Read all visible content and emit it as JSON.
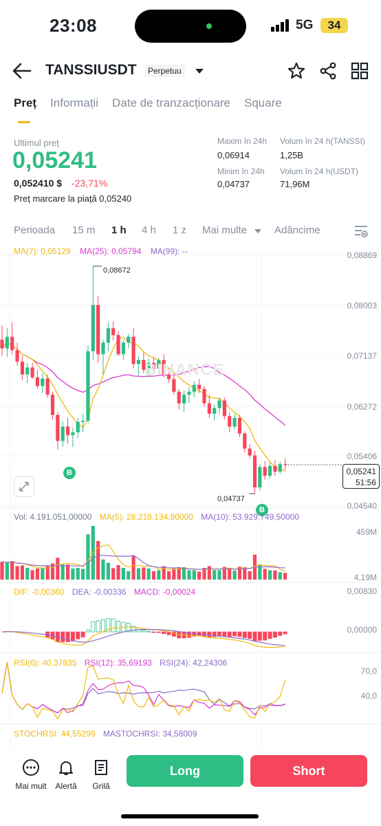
{
  "status_bar": {
    "time": "23:08",
    "network": "5G",
    "battery": "34"
  },
  "header": {
    "symbol": "TANSSIUSDT",
    "contract_type": "Perpetuu"
  },
  "tabs": [
    {
      "label": "Preț",
      "active": true
    },
    {
      "label": "Informații",
      "active": false
    },
    {
      "label": "Date de tranzacționare",
      "active": false
    },
    {
      "label": "Square",
      "active": false
    }
  ],
  "price": {
    "last_label": "Ultimul preț",
    "last": "0,05241",
    "fiat": "0,052410 $",
    "change": "-23,71%",
    "mark_label": "Preț marcare la piață",
    "mark": "0,05240"
  },
  "stats": {
    "high_label": "Maxim în 24h",
    "high": "0,06914",
    "low_label": "Minim în 24h",
    "low": "0,04737",
    "vol_base_label": "Volum în 24 h(TANSSI)",
    "vol_base": "1,25B",
    "vol_quote_label": "Volum în 24 h(USDT)",
    "vol_quote": "71,96M"
  },
  "intervals": {
    "period": "Perioada",
    "options": [
      "15 m",
      "1 h",
      "4 h",
      "1 z"
    ],
    "selected": "1 h",
    "more": "Mai multe",
    "depth": "Adâncime"
  },
  "colors": {
    "up": "#2ebd85",
    "down": "#f6465d",
    "accent": "#f0b90b",
    "ma7": "#f0b90b",
    "ma25": "#d63ad1",
    "ma99": "#8b6cc8"
  },
  "chart_data": [
    {
      "type": "candlestick",
      "watermark": "BINANCE",
      "legend": {
        "ma7": "MA(7): 0,05129",
        "ma25": "MA(25): 0,05794",
        "ma99": "MA(99): --"
      },
      "y_axis_labels": [
        "0,08869",
        "0,08003",
        "0,07137",
        "0,06272",
        "0,05406",
        "0,04540"
      ],
      "ylim": [
        0.0454,
        0.08869
      ],
      "high_marker": "0,08672",
      "low_marker": "0,04737",
      "current_price_tag": "0,05241",
      "countdown": "51:56",
      "buy_markers": [
        "B",
        "B"
      ],
      "candles": [
        [
          0.074,
          0.0765,
          0.0712,
          0.0725
        ],
        [
          0.0725,
          0.076,
          0.071,
          0.0745
        ],
        [
          0.0745,
          0.077,
          0.0715,
          0.0722
        ],
        [
          0.0722,
          0.0735,
          0.0695,
          0.0702
        ],
        [
          0.0702,
          0.0712,
          0.067,
          0.068
        ],
        [
          0.068,
          0.07,
          0.0665,
          0.0692
        ],
        [
          0.0692,
          0.07,
          0.0672,
          0.0675
        ],
        [
          0.0675,
          0.0688,
          0.0655,
          0.066
        ],
        [
          0.066,
          0.0682,
          0.0648,
          0.0673
        ],
        [
          0.0673,
          0.068,
          0.064,
          0.0645
        ],
        [
          0.0645,
          0.065,
          0.0602,
          0.061
        ],
        [
          0.061,
          0.0615,
          0.055,
          0.0565
        ],
        [
          0.0565,
          0.06,
          0.0555,
          0.059
        ],
        [
          0.059,
          0.0605,
          0.056,
          0.0575
        ],
        [
          0.0575,
          0.0588,
          0.0555,
          0.058
        ],
        [
          0.058,
          0.0605,
          0.057,
          0.0598
        ],
        [
          0.0598,
          0.0612,
          0.058,
          0.06
        ],
        [
          0.06,
          0.073,
          0.0595,
          0.072
        ],
        [
          0.072,
          0.0867,
          0.0705,
          0.08
        ],
        [
          0.08,
          0.0815,
          0.07,
          0.0715
        ],
        [
          0.0715,
          0.074,
          0.068,
          0.0735
        ],
        [
          0.0735,
          0.077,
          0.072,
          0.076
        ],
        [
          0.076,
          0.0772,
          0.0738,
          0.0748
        ],
        [
          0.0748,
          0.0755,
          0.0712,
          0.0715
        ],
        [
          0.0715,
          0.074,
          0.0705,
          0.0735
        ],
        [
          0.0735,
          0.075,
          0.0725,
          0.0745
        ],
        [
          0.0745,
          0.076,
          0.069,
          0.0698
        ],
        [
          0.0698,
          0.0712,
          0.0678,
          0.0705
        ],
        [
          0.0705,
          0.0718,
          0.0682,
          0.0688
        ],
        [
          0.0688,
          0.0708,
          0.0675,
          0.07
        ],
        [
          0.07,
          0.071,
          0.0685,
          0.069
        ],
        [
          0.069,
          0.0708,
          0.068,
          0.0705
        ],
        [
          0.0705,
          0.0715,
          0.0675,
          0.068
        ],
        [
          0.068,
          0.069,
          0.0665,
          0.0672
        ],
        [
          0.0672,
          0.0678,
          0.0645,
          0.065
        ],
        [
          0.065,
          0.0655,
          0.062,
          0.063
        ],
        [
          0.063,
          0.0652,
          0.0615,
          0.0645
        ],
        [
          0.0645,
          0.0658,
          0.063,
          0.065
        ],
        [
          0.065,
          0.0668,
          0.064,
          0.0662
        ],
        [
          0.0662,
          0.0672,
          0.0648,
          0.0655
        ],
        [
          0.0655,
          0.066,
          0.0625,
          0.063
        ],
        [
          0.063,
          0.0645,
          0.0605,
          0.0612
        ],
        [
          0.0612,
          0.0628,
          0.06,
          0.0622
        ],
        [
          0.0622,
          0.064,
          0.0612,
          0.0635
        ],
        [
          0.0635,
          0.064,
          0.0602,
          0.0608
        ],
        [
          0.0608,
          0.0615,
          0.058,
          0.059
        ],
        [
          0.059,
          0.0612,
          0.0585,
          0.0605
        ],
        [
          0.0605,
          0.061,
          0.0572,
          0.0578
        ],
        [
          0.0578,
          0.0582,
          0.0545,
          0.0552
        ],
        [
          0.0552,
          0.056,
          0.0535,
          0.054
        ],
        [
          0.054,
          0.0548,
          0.0474,
          0.0485
        ],
        [
          0.0485,
          0.0525,
          0.048,
          0.052
        ],
        [
          0.052,
          0.053,
          0.0498,
          0.0505
        ],
        [
          0.0505,
          0.0528,
          0.05,
          0.0522
        ],
        [
          0.0522,
          0.0532,
          0.0505,
          0.0512
        ],
        [
          0.0512,
          0.053,
          0.0508,
          0.0525
        ],
        [
          0.0525,
          0.0535,
          0.0515,
          0.0524
        ]
      ]
    },
    {
      "type": "bar",
      "legend": {
        "vol": "Vol: 4.191.051,00000",
        "ma5": "MA(5): 28.218.134,80000",
        "ma10": "MA(10): 53.929.749,50000"
      },
      "y_axis_labels": [
        "459M",
        "4,19M"
      ]
    },
    {
      "type": "bar",
      "legend": {
        "dif": "DIF: -0,00360",
        "dea": "DEA: -0,00336",
        "macd": "MACD: -0,00024"
      },
      "y_axis_labels": [
        "0,00830",
        "0,00000"
      ]
    },
    {
      "type": "line",
      "legend": {
        "rsi6": "RSI(6): 40,37835",
        "rsi12": "RSI(12): 35,69193",
        "rsi24": "RSI(24): 42,24306"
      },
      "y_axis_labels": [
        "70,0",
        "40,0"
      ]
    },
    {
      "type": "line",
      "legend": {
        "stoch": "STOCHRSI: 44,55299",
        "mastoch": "MASTOCHRSI: 34,58009"
      }
    }
  ],
  "bottom_bar": {
    "more": "Mai mult",
    "alert": "Alertă",
    "grid": "Grilă",
    "long": "Long",
    "short": "Short"
  }
}
